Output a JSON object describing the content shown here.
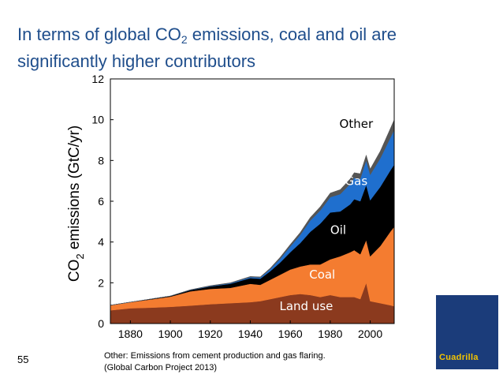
{
  "slide": {
    "title_part1": "In terms of global CO",
    "title_sub": "2",
    "title_part2": " emissions, coal and oil are significantly higher contributors",
    "slide_number": "55",
    "footnote_line1": "Other: Emissions from cement production and gas flaring.",
    "footnote_line2": "(Global Carbon Project 2013)",
    "logo_text": "Cuadrilla"
  },
  "chart_data": {
    "type": "area",
    "stacked": true,
    "title": "",
    "xlabel": "",
    "ylabel_main": "CO",
    "ylabel_sub": "2",
    "ylabel_rest": " emissions (GtC/yr)",
    "xlim": [
      1870,
      2012
    ],
    "ylim": [
      0,
      12
    ],
    "xticks": [
      1880,
      1900,
      1920,
      1940,
      1960,
      1980,
      2000
    ],
    "yticks": [
      0,
      2,
      4,
      6,
      8,
      10,
      12
    ],
    "grid": false,
    "x": [
      1870,
      1880,
      1890,
      1900,
      1910,
      1920,
      1930,
      1940,
      1945,
      1950,
      1955,
      1960,
      1965,
      1970,
      1975,
      1980,
      1985,
      1990,
      1992,
      1995,
      1998,
      2000,
      2005,
      2010,
      2012
    ],
    "series": [
      {
        "name": "Land use",
        "color": "#8b3a1e",
        "values": [
          0.65,
          0.75,
          0.78,
          0.82,
          0.88,
          0.95,
          1.0,
          1.05,
          1.1,
          1.2,
          1.3,
          1.4,
          1.45,
          1.4,
          1.3,
          1.4,
          1.3,
          1.3,
          1.3,
          1.2,
          2.0,
          1.1,
          1.0,
          0.9,
          0.85
        ]
      },
      {
        "name": "Coal",
        "color": "#f47c30",
        "values": [
          0.25,
          0.3,
          0.4,
          0.5,
          0.7,
          0.75,
          0.75,
          0.9,
          0.8,
          0.95,
          1.1,
          1.25,
          1.35,
          1.5,
          1.6,
          1.75,
          2.0,
          2.2,
          2.3,
          2.2,
          2.1,
          2.2,
          2.8,
          3.6,
          3.9
        ]
      },
      {
        "name": "Oil",
        "color": "#000000",
        "values": [
          0.0,
          0.0,
          0.02,
          0.03,
          0.06,
          0.12,
          0.2,
          0.28,
          0.3,
          0.42,
          0.6,
          0.85,
          1.15,
          1.6,
          2.0,
          2.3,
          2.2,
          2.35,
          2.5,
          2.6,
          2.7,
          2.75,
          2.9,
          3.0,
          3.05
        ]
      },
      {
        "name": "Gas",
        "color": "#1f6fce",
        "values": [
          0.0,
          0.0,
          0.0,
          0.0,
          0.01,
          0.02,
          0.03,
          0.05,
          0.06,
          0.1,
          0.18,
          0.28,
          0.4,
          0.55,
          0.65,
          0.75,
          0.85,
          1.0,
          1.05,
          1.1,
          1.2,
          1.25,
          1.4,
          1.6,
          1.7
        ]
      },
      {
        "name": "Other",
        "color": "#555555",
        "values": [
          0.0,
          0.0,
          0.0,
          0.0,
          0.01,
          0.02,
          0.02,
          0.03,
          0.03,
          0.05,
          0.08,
          0.1,
          0.12,
          0.15,
          0.18,
          0.2,
          0.22,
          0.25,
          0.25,
          0.25,
          0.26,
          0.28,
          0.35,
          0.45,
          0.5
        ]
      }
    ],
    "annotations": [
      {
        "text": "Other",
        "x": 1993,
        "y": 9.6,
        "color": "#000000"
      },
      {
        "text": "Gas",
        "x": 1993,
        "y": 6.8,
        "color": "#ffffff"
      },
      {
        "text": "Oil",
        "x": 1984,
        "y": 4.4,
        "color": "#ffffff"
      },
      {
        "text": "Coal",
        "x": 1976,
        "y": 2.2,
        "color": "#ffffff"
      },
      {
        "text": "Land use",
        "x": 1968,
        "y": 0.65,
        "color": "#ffffff"
      }
    ]
  }
}
